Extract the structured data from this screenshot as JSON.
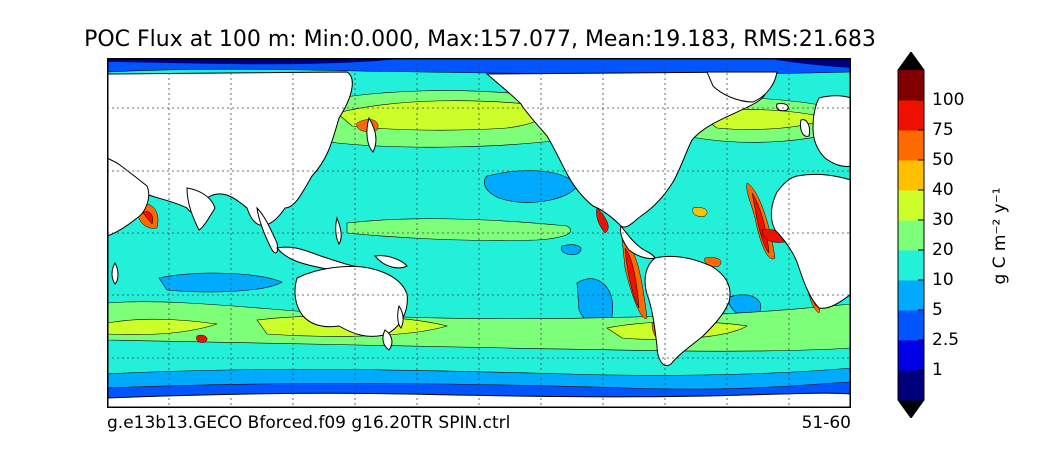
{
  "title": "POC Flux at 100 m: Min:0.000, Max:157.077, Mean:19.183, RMS:21.683",
  "footer": {
    "case_name": "g.e13b13.GECO Bforced.f09 g16.20TR SPIN.ctrl",
    "years": "51-60"
  },
  "colorbar": {
    "unit_label": "g C m⁻² y⁻¹",
    "ticks": [
      "1",
      "2.5",
      "5",
      "10",
      "20",
      "30",
      "40",
      "50",
      "75",
      "100"
    ],
    "colors": [
      "#00007f",
      "#0000e6",
      "#0055ff",
      "#00aaff",
      "#22f0d8",
      "#7dff7a",
      "#ccff2a",
      "#ffc000",
      "#ff6a00",
      "#ee1000",
      "#800000"
    ],
    "extend": "both"
  },
  "map_colors": {
    "ocean_base": "#22f0d8",
    "land": "#ffffff",
    "coast": "#000000"
  }
}
